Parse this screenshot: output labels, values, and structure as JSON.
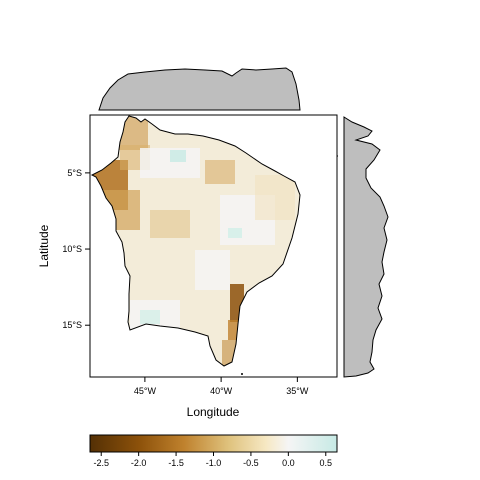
{
  "map": {
    "x_axis_title": "Longitude",
    "y_axis_title": "Latitude",
    "x_ticks": [
      {
        "value": -45,
        "label": "45°W"
      },
      {
        "value": -40,
        "label": "40°W"
      },
      {
        "value": -35,
        "label": "35°W"
      }
    ],
    "y_ticks": [
      {
        "value": -5,
        "label": "5°S"
      },
      {
        "value": -10,
        "label": "10°S"
      },
      {
        "value": -15,
        "label": "15°S"
      }
    ],
    "lon_range": [
      -48.6,
      -32.4
    ],
    "lat_range": [
      -18.4,
      -1.2
    ],
    "fill_color_land": "#f3ecd9",
    "margin_panel_fill": "#bebebe"
  },
  "colorbar": {
    "ticks": [
      "-2.5",
      "-2.0",
      "-1.5",
      "-1.0",
      "-0.5",
      "0.0",
      "0.5"
    ],
    "tick_values": [
      -2.5,
      -2.0,
      -1.5,
      -1.0,
      -0.5,
      0.0,
      0.5
    ],
    "range": [
      -2.65,
      0.65
    ],
    "stops": [
      {
        "value": -2.65,
        "color": "#543005"
      },
      {
        "value": -2.0,
        "color": "#8c510a"
      },
      {
        "value": -1.4,
        "color": "#bf812d"
      },
      {
        "value": -0.8,
        "color": "#dfc27d"
      },
      {
        "value": -0.3,
        "color": "#f6e8c3"
      },
      {
        "value": 0.0,
        "color": "#f5f5f5"
      },
      {
        "value": 0.65,
        "color": "#c7eae5"
      }
    ]
  }
}
